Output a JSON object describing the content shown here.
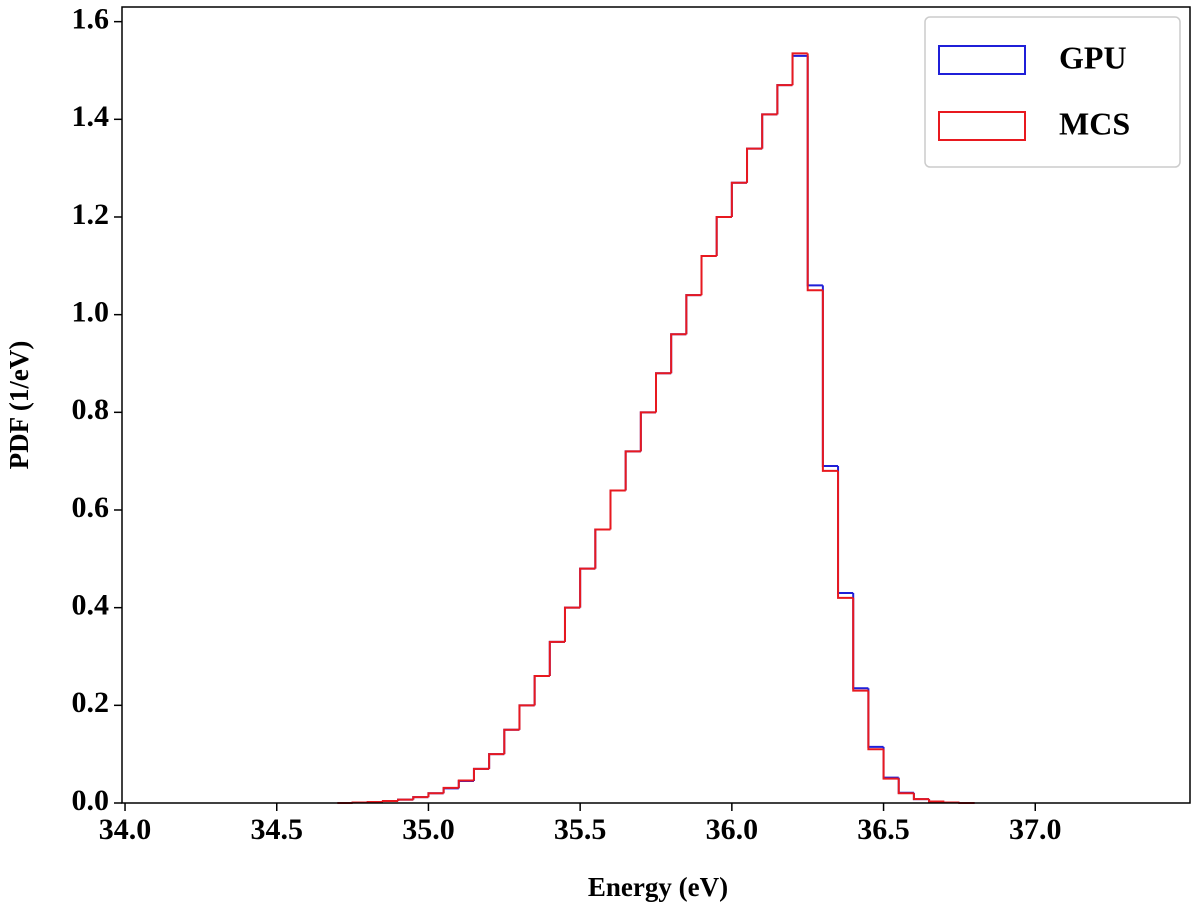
{
  "chart_data": {
    "type": "histogram",
    "xlabel": "Energy (eV)",
    "ylabel": "PDF (1/eV)",
    "bins": [
      34.7,
      34.75,
      34.8,
      34.85,
      34.9,
      34.95,
      35.0,
      35.05,
      35.1,
      35.15,
      35.2,
      35.25,
      35.3,
      35.35,
      35.4,
      35.45,
      35.5,
      35.55,
      35.6,
      35.65,
      35.7,
      35.75,
      35.8,
      35.85,
      35.9,
      35.95,
      36.0,
      36.05,
      36.1,
      36.15,
      36.2,
      36.25,
      36.3,
      36.35,
      36.4,
      36.45,
      36.5,
      36.55,
      36.6,
      36.65,
      36.7,
      36.75,
      36.8
    ],
    "series": [
      {
        "name": "GPU",
        "color": "#1f1fd8",
        "values": [
          0.0,
          0.001,
          0.002,
          0.004,
          0.007,
          0.012,
          0.02,
          0.03,
          0.045,
          0.07,
          0.1,
          0.15,
          0.2,
          0.26,
          0.33,
          0.4,
          0.48,
          0.56,
          0.64,
          0.72,
          0.8,
          0.88,
          0.96,
          1.04,
          1.12,
          1.2,
          1.27,
          1.34,
          1.41,
          1.47,
          1.53,
          1.06,
          0.69,
          0.43,
          0.235,
          0.115,
          0.052,
          0.021,
          0.008,
          0.003,
          0.001,
          0.0
        ]
      },
      {
        "name": "MCS",
        "color": "#e8191f",
        "values": [
          0.0,
          0.001,
          0.002,
          0.004,
          0.007,
          0.012,
          0.02,
          0.031,
          0.046,
          0.07,
          0.1,
          0.15,
          0.2,
          0.26,
          0.33,
          0.4,
          0.48,
          0.56,
          0.64,
          0.72,
          0.8,
          0.88,
          0.96,
          1.04,
          1.12,
          1.2,
          1.27,
          1.34,
          1.41,
          1.47,
          1.535,
          1.05,
          0.68,
          0.42,
          0.23,
          0.11,
          0.05,
          0.02,
          0.008,
          0.003,
          0.001,
          0.0
        ]
      }
    ],
    "xlim": [
      33.99,
      37.51
    ],
    "ylim": [
      0,
      1.63
    ],
    "xticks": [
      {
        "value": 34,
        "label": "34.0"
      },
      34.5,
      {
        "value": 35,
        "label": "35.0"
      },
      35.5,
      {
        "value": 36,
        "label": "36.0"
      },
      36.5,
      {
        "value": 37,
        "label": "37.0"
      }
    ],
    "yticks": [
      {
        "value": 0,
        "label": "0.0"
      },
      0.2,
      0.4,
      0.6,
      0.8,
      {
        "value": 1,
        "label": "1.0"
      },
      1.2,
      1.4,
      1.6
    ],
    "legend": "upper right"
  }
}
